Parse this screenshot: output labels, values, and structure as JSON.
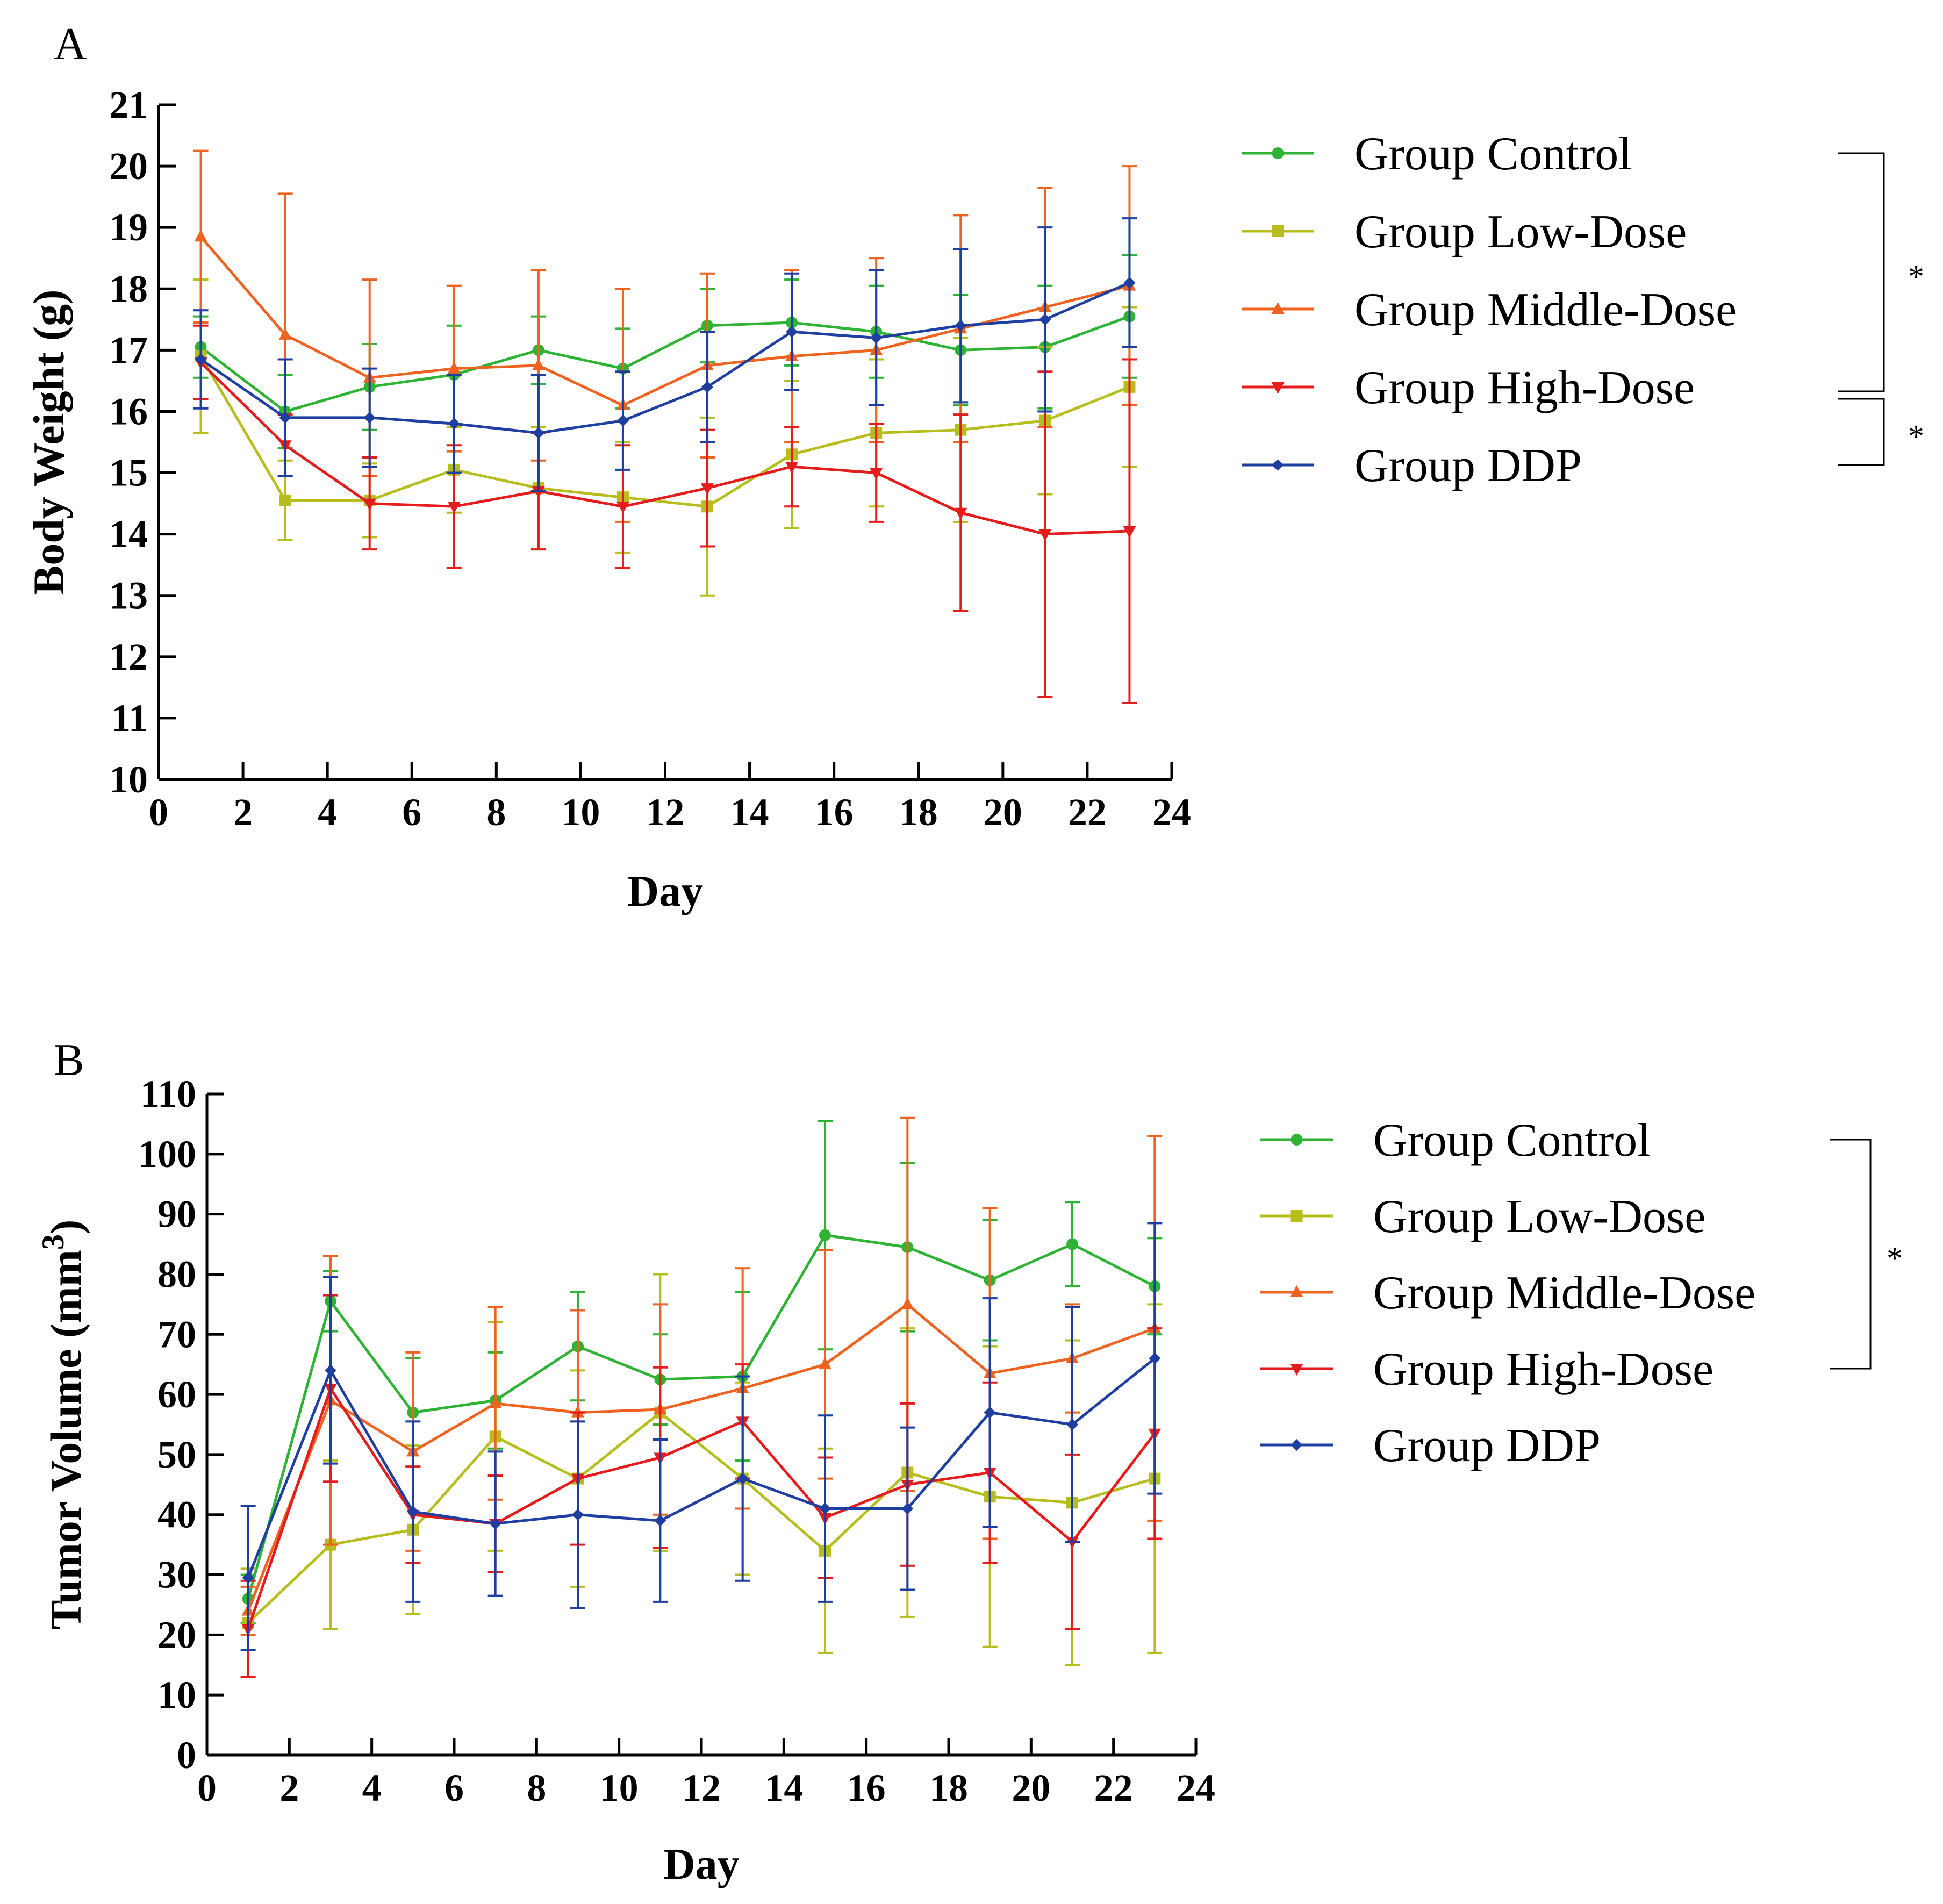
{
  "chart_data": [
    {
      "panel": "A",
      "type": "line",
      "xlabel": "Day",
      "ylabel": "Body Weight (g)",
      "xlim": [
        0,
        24
      ],
      "ylim": [
        10,
        21
      ],
      "xticks": [
        "0",
        "2",
        "4",
        "6",
        "8",
        "10",
        "12",
        "14",
        "16",
        "18",
        "20",
        "22",
        "24"
      ],
      "yticks": [
        "10",
        "11",
        "12",
        "13",
        "14",
        "15",
        "16",
        "17",
        "18",
        "19",
        "20",
        "21"
      ],
      "x": [
        1,
        3,
        5,
        7,
        9,
        11,
        13,
        15,
        17,
        19,
        21,
        23
      ],
      "legend_position": "right",
      "series": [
        {
          "name": "Group Control",
          "color": "#2eb335",
          "marker": "circle",
          "values": [
            17.05,
            16.0,
            16.4,
            16.6,
            17.0,
            16.7,
            17.4,
            17.45,
            17.3,
            17.0,
            17.05,
            17.55
          ],
          "errors": [
            0.5,
            0.6,
            0.7,
            0.8,
            0.55,
            0.65,
            0.6,
            0.7,
            0.75,
            0.9,
            1.0,
            1.0
          ]
        },
        {
          "name": "Group Low-Dose",
          "color": "#b8bd1e",
          "marker": "square",
          "values": [
            16.9,
            14.55,
            14.55,
            15.05,
            14.75,
            14.6,
            14.45,
            15.3,
            15.65,
            15.7,
            15.85,
            16.4
          ],
          "errors": [
            1.25,
            0.65,
            0.6,
            0.7,
            1.0,
            0.9,
            1.45,
            1.2,
            1.2,
            1.5,
            1.2,
            1.3
          ]
        },
        {
          "name": "Group Middle-Dose",
          "color": "#ee6320",
          "marker": "triangle-up",
          "values": [
            18.85,
            17.25,
            16.55,
            16.7,
            16.75,
            16.1,
            16.75,
            16.9,
            17.0,
            17.35,
            17.7,
            18.05
          ],
          "errors": [
            1.4,
            2.3,
            1.6,
            1.35,
            1.55,
            1.9,
            1.5,
            1.4,
            1.5,
            1.85,
            1.95,
            1.95
          ]
        },
        {
          "name": "Group High-Dose",
          "color": "#e41c1c",
          "marker": "triangle-down",
          "values": [
            16.8,
            15.45,
            14.5,
            14.45,
            14.7,
            14.45,
            14.75,
            15.1,
            15.0,
            14.35,
            14.0,
            14.05
          ],
          "errors": [
            0.6,
            0.5,
            0.75,
            1.0,
            0.95,
            1.0,
            0.95,
            0.65,
            0.8,
            1.6,
            2.65,
            2.8
          ]
        },
        {
          "name": "Group DDP",
          "color": "#1f3fa0",
          "marker": "diamond",
          "values": [
            16.85,
            15.9,
            15.9,
            15.8,
            15.65,
            15.85,
            16.4,
            17.3,
            17.2,
            17.4,
            17.5,
            18.1
          ],
          "errors": [
            0.8,
            0.95,
            0.8,
            0.8,
            0.95,
            0.8,
            0.9,
            0.95,
            1.1,
            1.25,
            1.5,
            1.05
          ]
        }
      ],
      "significance": [
        {
          "from": "Group Control",
          "to": "Group High-Dose",
          "label": "*"
        },
        {
          "from": "Group High-Dose",
          "to": "Group DDP",
          "label": "*"
        }
      ]
    },
    {
      "panel": "B",
      "type": "line",
      "xlabel": "Day",
      "ylabel": "Tumor Volume (mm3)",
      "ylabel_main": "Tumor Volume (mm",
      "ylabel_sup": "3",
      "ylabel_end": ")",
      "xlim": [
        0,
        24
      ],
      "ylim": [
        0,
        110
      ],
      "xticks": [
        "0",
        "2",
        "4",
        "6",
        "8",
        "10",
        "12",
        "14",
        "16",
        "18",
        "20",
        "22",
        "24"
      ],
      "yticks": [
        "0",
        "10",
        "20",
        "30",
        "40",
        "50",
        "60",
        "70",
        "80",
        "90",
        "100",
        "110"
      ],
      "x": [
        1,
        3,
        5,
        7,
        9,
        11,
        13,
        15,
        17,
        19,
        21,
        23
      ],
      "legend_position": "right",
      "series": [
        {
          "name": "Group Control",
          "color": "#2eb335",
          "marker": "circle",
          "values": [
            26,
            75.5,
            57,
            59,
            68,
            62.5,
            63,
            86.5,
            84.5,
            79,
            85,
            78
          ],
          "errors": [
            4,
            5,
            9,
            8,
            9,
            7.5,
            14,
            19,
            14,
            10,
            7,
            8
          ]
        },
        {
          "name": "Group Low-Dose",
          "color": "#b8bd1e",
          "marker": "square",
          "values": [
            22,
            35,
            37.5,
            53,
            46,
            57,
            46,
            34,
            47,
            43,
            42,
            46
          ],
          "errors": [
            9,
            14,
            14,
            19,
            18,
            23,
            16,
            17,
            24,
            25,
            27,
            29
          ]
        },
        {
          "name": "Group Middle-Dose",
          "color": "#ee6320",
          "marker": "triangle-up",
          "values": [
            24,
            59,
            50.5,
            58.5,
            57,
            57.5,
            61,
            65,
            75,
            63.5,
            66,
            71
          ],
          "errors": [
            4,
            24,
            16.5,
            16,
            17,
            17.5,
            20,
            19,
            31,
            27.5,
            9,
            32
          ]
        },
        {
          "name": "Group High-Dose",
          "color": "#e41c1c",
          "marker": "triangle-down",
          "values": [
            21,
            61,
            40,
            38.5,
            46,
            49.5,
            55.5,
            39.5,
            45,
            47,
            35.5,
            53.5
          ],
          "errors": [
            8,
            15.5,
            8,
            8,
            11,
            15,
            9.5,
            10,
            13.5,
            15,
            14.5,
            17.5
          ]
        },
        {
          "name": "Group DDP",
          "color": "#1f3fa0",
          "marker": "diamond",
          "values": [
            29.5,
            64,
            40.5,
            38.5,
            40,
            39,
            46,
            41,
            41,
            57,
            55,
            66
          ],
          "errors": [
            12,
            15.5,
            15,
            12,
            15.5,
            13.5,
            17,
            15.5,
            13.5,
            19,
            19.5,
            22.5
          ]
        }
      ],
      "significance": [
        {
          "from": "Group Control",
          "to": "Group High-Dose",
          "label": "*"
        }
      ]
    }
  ]
}
